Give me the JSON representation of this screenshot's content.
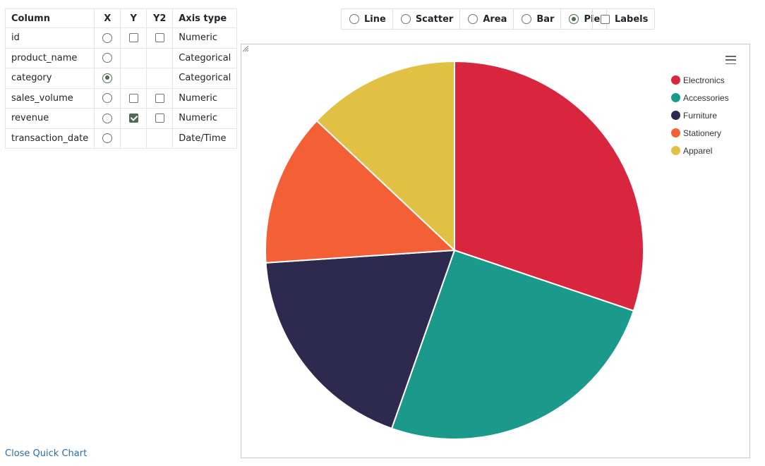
{
  "columns_table": {
    "headers": {
      "column": "Column",
      "x": "X",
      "y": "Y",
      "y2": "Y2",
      "axis_type": "Axis type"
    },
    "rows": [
      {
        "name": "id",
        "x_selected": false,
        "y": "unchecked",
        "y2": "unchecked",
        "axis_type": "Numeric"
      },
      {
        "name": "product_name",
        "x_selected": false,
        "y": "none",
        "y2": "none",
        "axis_type": "Categorical"
      },
      {
        "name": "category",
        "x_selected": true,
        "y": "none",
        "y2": "none",
        "axis_type": "Categorical"
      },
      {
        "name": "sales_volume",
        "x_selected": false,
        "y": "unchecked",
        "y2": "unchecked",
        "axis_type": "Numeric"
      },
      {
        "name": "revenue",
        "x_selected": false,
        "y": "checked",
        "y2": "unchecked",
        "axis_type": "Numeric"
      },
      {
        "name": "transaction_date",
        "x_selected": false,
        "y": "none",
        "y2": "none",
        "axis_type": "Date/Time"
      }
    ]
  },
  "chart_types": {
    "options": [
      {
        "label": "Line",
        "selected": false
      },
      {
        "label": "Scatter",
        "selected": false
      },
      {
        "label": "Area",
        "selected": false
      },
      {
        "label": "Bar",
        "selected": false
      },
      {
        "label": "Pie",
        "selected": true
      }
    ],
    "labels_toggle": {
      "label": "Labels",
      "checked": false
    }
  },
  "close_link": "Close Quick Chart",
  "icons": {
    "menu": "hamburger-menu-icon",
    "resize": "resize-handle-icon"
  },
  "colors": {
    "accent": "#4d6b53",
    "link": "#2a6ea6"
  },
  "chart_data": {
    "type": "pie",
    "title": "",
    "legend_position": "top-right",
    "categories": [
      "Electronics",
      "Accessories",
      "Furniture",
      "Stationery",
      "Apparel"
    ],
    "values": [
      31.4,
      26.2,
      19.3,
      13.6,
      13.5
    ],
    "colors": [
      "#d7263d",
      "#1b998b",
      "#2e294e",
      "#f46036",
      "#e2c044"
    ],
    "start_angle_deg": 0,
    "direction": "clockwise"
  }
}
